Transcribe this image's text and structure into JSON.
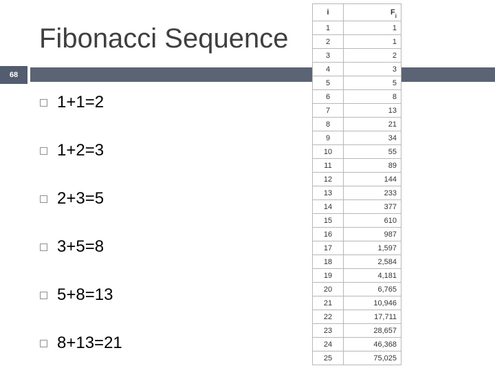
{
  "slide": {
    "title": "Fibonacci Sequence",
    "number": "68"
  },
  "bullets": [
    "1+1=2",
    "1+2=3",
    "2+3=5",
    "3+5=8",
    "5+8=13",
    "8+13=21"
  ],
  "table": {
    "header_i": "i",
    "header_f": "F",
    "header_f_sub": "i",
    "rows": [
      {
        "i": "1",
        "f": "1"
      },
      {
        "i": "2",
        "f": "1"
      },
      {
        "i": "3",
        "f": "2"
      },
      {
        "i": "4",
        "f": "3"
      },
      {
        "i": "5",
        "f": "5"
      },
      {
        "i": "6",
        "f": "8"
      },
      {
        "i": "7",
        "f": "13"
      },
      {
        "i": "8",
        "f": "21"
      },
      {
        "i": "9",
        "f": "34"
      },
      {
        "i": "10",
        "f": "55"
      },
      {
        "i": "11",
        "f": "89"
      },
      {
        "i": "12",
        "f": "144"
      },
      {
        "i": "13",
        "f": "233"
      },
      {
        "i": "14",
        "f": "377"
      },
      {
        "i": "15",
        "f": "610"
      },
      {
        "i": "16",
        "f": "987"
      },
      {
        "i": "17",
        "f": "1,597"
      },
      {
        "i": "18",
        "f": "2,584"
      },
      {
        "i": "19",
        "f": "4,181"
      },
      {
        "i": "20",
        "f": "6,765"
      },
      {
        "i": "21",
        "f": "10,946"
      },
      {
        "i": "22",
        "f": "17,711"
      },
      {
        "i": "23",
        "f": "28,657"
      },
      {
        "i": "24",
        "f": "46,368"
      },
      {
        "i": "25",
        "f": "75,025"
      }
    ]
  }
}
